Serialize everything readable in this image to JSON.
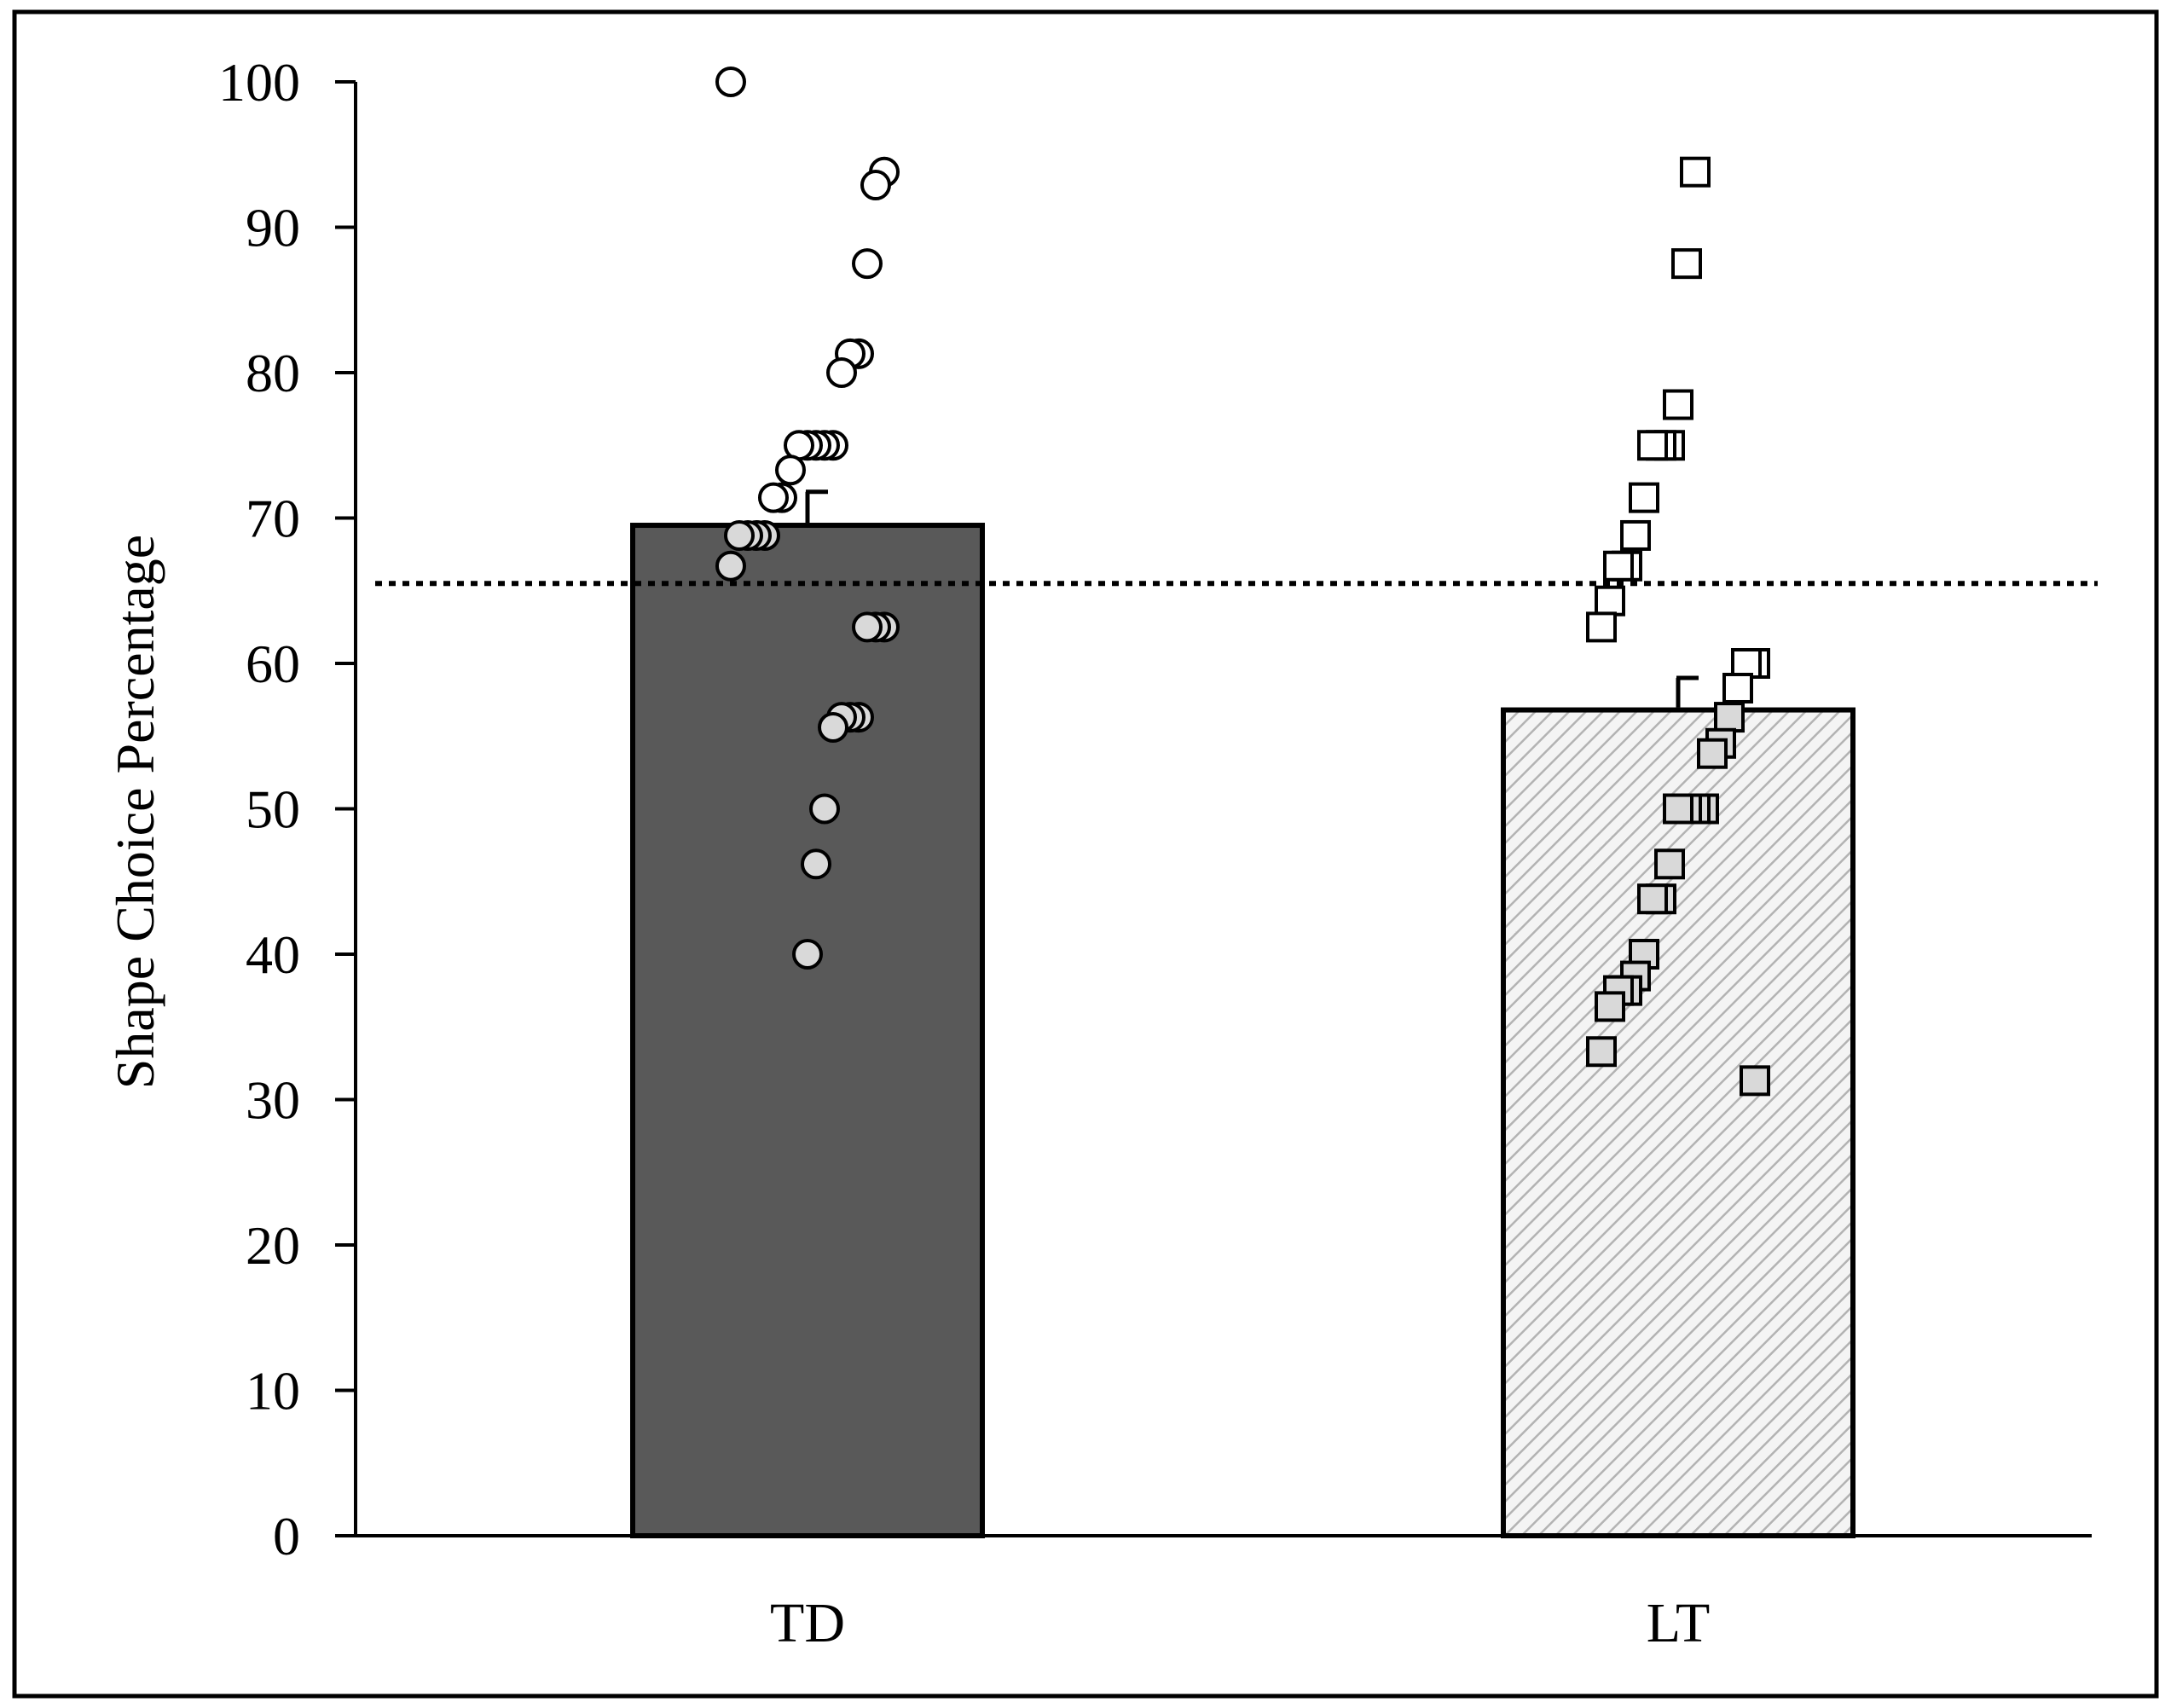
{
  "chart_data": {
    "type": "bar",
    "title": "",
    "xlabel": "",
    "ylabel": "Shape Choice Percentage",
    "ylim": [
      0,
      100
    ],
    "yticks": [
      0,
      10,
      20,
      30,
      40,
      50,
      60,
      70,
      80,
      90,
      100
    ],
    "grid": false,
    "legend": "none",
    "categories": [
      "TD",
      "LT"
    ],
    "values": [
      69.5,
      56.8
    ],
    "error_upper": [
      71.8,
      59.0
    ],
    "reference_line": {
      "y": 65.5,
      "style": "dotted"
    },
    "bar_fills": [
      "#595959",
      "hatched-light-gray"
    ],
    "series": [
      {
        "category": "TD",
        "marker": "circle",
        "points": [
          100,
          93.8,
          92.9,
          87.5,
          81.3,
          81.3,
          80,
          75,
          75,
          75,
          75,
          75,
          73.3,
          71.4,
          71.4,
          68.8,
          68.8,
          68.8,
          68.8,
          66.7,
          62.5,
          62.5,
          62.5,
          56.3,
          56.3,
          56.3,
          55.6,
          50,
          46.2,
          40
        ]
      },
      {
        "category": "LT",
        "marker": "square",
        "points": [
          93.8,
          87.5,
          77.8,
          75,
          75,
          75,
          71.4,
          68.8,
          66.7,
          66.7,
          64.3,
          62.5,
          60,
          60,
          58.3,
          56.3,
          54.5,
          53.8,
          50,
          50,
          50,
          50,
          46.2,
          43.8,
          43.8,
          40,
          38.5,
          37.5,
          37.5,
          36.4,
          33.3,
          31.3
        ]
      }
    ]
  },
  "colors": {
    "td_bar": "#595959",
    "lt_bar_background": "#f4f4f4",
    "lt_bar_hatch": "#b3b3b3",
    "marker_fill_inside_bar": "#d9d9d9",
    "marker_fill": "#ffffff",
    "stroke": "#000000"
  }
}
